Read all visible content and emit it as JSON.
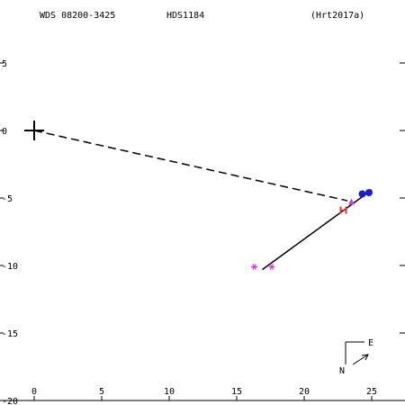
{
  "header": {
    "left": "WDS 08200-3425",
    "center": "HDS1184",
    "right": "(Hrt2017a)"
  },
  "compass": {
    "east_label": "E",
    "north_label": "N"
  },
  "chart_data": {
    "type": "scatter",
    "xlim": [
      -2.5,
      27.5
    ],
    "ylim": [
      -20,
      8
    ],
    "grid": false,
    "x_ticks": [
      0,
      5,
      10,
      15,
      20,
      25
    ],
    "y_ticks": [
      5,
      0,
      -5,
      -10,
      -15,
      -20
    ],
    "x_tick_labels": [
      "0",
      "5",
      "10",
      "15",
      "20",
      "25"
    ],
    "y_tick_labels": [
      "5",
      "0",
      "-5",
      "-10",
      "-15",
      "-20"
    ],
    "primary": {
      "x": 0,
      "y": 0
    },
    "dashed_line": {
      "from": [
        0,
        0
      ],
      "to": [
        23.2,
        -5.2
      ]
    },
    "solid_line": {
      "from": [
        16.9,
        -10.3
      ],
      "to": [
        25.0,
        -4.4
      ]
    },
    "series": [
      {
        "marker": "asterisk",
        "color": "#d23cd2",
        "points": [
          [
            16.3,
            -10.1
          ],
          [
            17.6,
            -10.1
          ]
        ]
      },
      {
        "marker": "bar",
        "color": "#d23c3c",
        "points": [
          [
            22.7,
            -5.9
          ],
          [
            23.1,
            -5.9
          ]
        ]
      },
      {
        "marker": "triangle",
        "color": "#d23cd2",
        "points": [
          [
            23.5,
            -5.3
          ]
        ]
      },
      {
        "marker": "circle",
        "color": "#1f1fbf",
        "points": [
          [
            24.3,
            -4.7
          ],
          [
            24.8,
            -4.6
          ]
        ]
      }
    ]
  }
}
